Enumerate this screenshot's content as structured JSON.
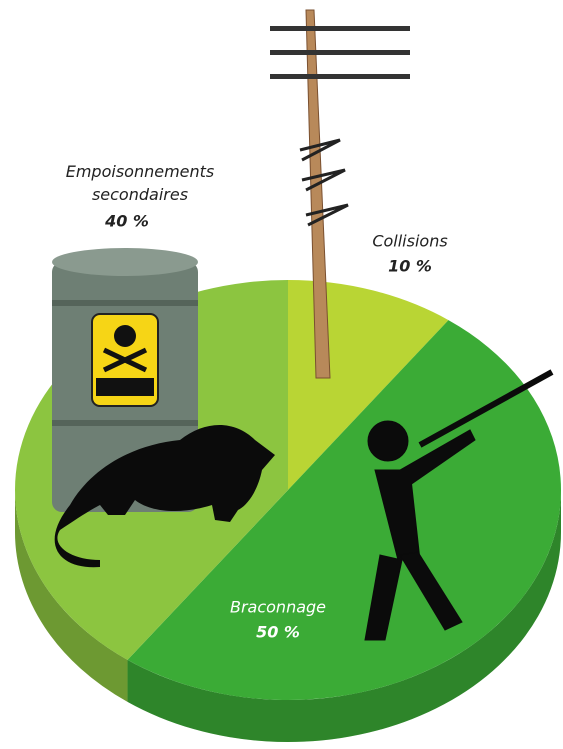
{
  "chart_data": {
    "type": "pie",
    "categories": [
      "Empoisonnements secondaires",
      "Collisions",
      "Braconnage"
    ],
    "values": [
      40,
      10,
      50
    ],
    "value_labels": [
      "40 %",
      "10 %",
      "50 %"
    ],
    "colors": [
      "#8cc540",
      "#b9d534",
      "#3bab36"
    ]
  }
}
